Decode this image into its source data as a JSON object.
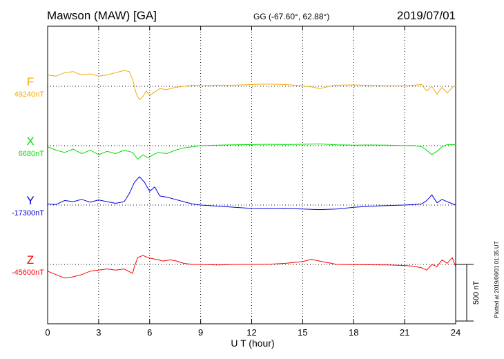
{
  "header": {
    "station": "Mawson (MAW)  [GA]",
    "coords": "GG (-67.60°,  62.88°)",
    "date": "2019/07/01"
  },
  "footer": {
    "plotted": "Plotted at 2019/08/01 01:35 UT"
  },
  "chart_data": {
    "type": "line",
    "xlabel": "U T (hour)",
    "xlim": [
      0,
      24
    ],
    "xticks": [
      0,
      3,
      6,
      9,
      12,
      15,
      18,
      21,
      24
    ],
    "scale_bar": {
      "label": "500 nT",
      "value_nT": 500
    },
    "grid": true,
    "series": [
      {
        "name": "F",
        "baseline_label": "49240nT",
        "baseline_nT": 49240,
        "color": "#f5a800",
        "x": [
          0,
          0.5,
          1,
          1.5,
          2,
          2.5,
          3,
          3.5,
          4,
          4.5,
          4.8,
          5,
          5.2,
          5.4,
          5.6,
          5.8,
          6,
          6.3,
          6.6,
          7,
          7.5,
          8,
          8.5,
          9,
          10,
          11,
          12,
          13,
          14,
          15,
          15.5,
          16,
          16.3,
          16.7,
          17,
          18,
          19,
          20,
          21,
          21.5,
          22,
          22.3,
          22.6,
          22.9,
          23.2,
          23.5,
          23.8,
          24
        ],
        "y": [
          49340,
          49330,
          49360,
          49370,
          49340,
          49350,
          49330,
          49340,
          49360,
          49380,
          49370,
          49300,
          49180,
          49120,
          49150,
          49200,
          49160,
          49190,
          49220,
          49210,
          49230,
          49240,
          49250,
          49245,
          49250,
          49250,
          49255,
          49260,
          49255,
          49245,
          49235,
          49220,
          49230,
          49245,
          49250,
          49252,
          49248,
          49245,
          49245,
          49250,
          49255,
          49200,
          49240,
          49170,
          49230,
          49180,
          49230,
          49250
        ]
      },
      {
        "name": "X",
        "baseline_label": "6680nT",
        "baseline_nT": 6680,
        "color": "#00dd00",
        "x": [
          0,
          0.5,
          1,
          1.5,
          2,
          2.5,
          3,
          3.5,
          4,
          4.5,
          5,
          5.3,
          5.6,
          5.9,
          6.2,
          6.5,
          7,
          7.5,
          8,
          8.5,
          9,
          10,
          11,
          12,
          13,
          14,
          15,
          16,
          17,
          18,
          19,
          20,
          21,
          21.5,
          22,
          22.3,
          22.6,
          22.9,
          23.2,
          23.5,
          24
        ],
        "y": [
          6670,
          6640,
          6620,
          6650,
          6610,
          6640,
          6600,
          6630,
          6610,
          6640,
          6620,
          6560,
          6600,
          6570,
          6600,
          6620,
          6610,
          6640,
          6660,
          6670,
          6680,
          6685,
          6688,
          6690,
          6692,
          6690,
          6692,
          6695,
          6688,
          6685,
          6686,
          6684,
          6680,
          6682,
          6670,
          6640,
          6600,
          6630,
          6670,
          6690,
          6690
        ]
      },
      {
        "name": "Y",
        "baseline_label": "-17300nT",
        "baseline_nT": -17300,
        "color": "#0000dd",
        "x": [
          0,
          0.5,
          1,
          1.5,
          2,
          2.5,
          3,
          3.5,
          4,
          4.5,
          4.8,
          5.1,
          5.4,
          5.7,
          6,
          6.3,
          6.6,
          7,
          7.5,
          8,
          8.5,
          9,
          10,
          11,
          12,
          13,
          14,
          15,
          16,
          17,
          18,
          19,
          20,
          21,
          21.5,
          22,
          22.3,
          22.6,
          22.9,
          23.2,
          23.5,
          24
        ],
        "y": [
          -17290,
          -17295,
          -17260,
          -17270,
          -17250,
          -17275,
          -17255,
          -17270,
          -17285,
          -17270,
          -17200,
          -17100,
          -17050,
          -17100,
          -17180,
          -17140,
          -17220,
          -17230,
          -17250,
          -17270,
          -17290,
          -17300,
          -17310,
          -17320,
          -17330,
          -17332,
          -17330,
          -17335,
          -17340,
          -17335,
          -17320,
          -17310,
          -17305,
          -17300,
          -17295,
          -17290,
          -17260,
          -17210,
          -17280,
          -17250,
          -17270,
          -17300
        ]
      },
      {
        "name": "Z",
        "baseline_label": "-45600nT",
        "baseline_nT": -45600,
        "color": "#ff0000",
        "x": [
          0,
          0.5,
          1,
          1.5,
          2,
          2.5,
          3,
          3.5,
          4,
          4.5,
          5,
          5.1,
          5.3,
          5.6,
          5.9,
          6.2,
          6.5,
          6.8,
          7.2,
          7.6,
          8,
          8.5,
          9,
          10,
          11,
          12,
          13,
          14,
          15,
          15.5,
          16,
          16.3,
          16.7,
          17,
          18,
          19,
          20,
          21,
          21.5,
          22,
          22.3,
          22.6,
          22.9,
          23.2,
          23.5,
          23.8,
          24
        ],
        "y": [
          -45660,
          -45690,
          -45720,
          -45710,
          -45690,
          -45660,
          -45650,
          -45640,
          -45650,
          -45640,
          -45680,
          -45620,
          -45540,
          -45520,
          -45540,
          -45550,
          -45560,
          -45570,
          -45560,
          -45570,
          -45590,
          -45600,
          -45600,
          -45605,
          -45600,
          -45600,
          -45598,
          -45590,
          -45575,
          -45555,
          -45570,
          -45580,
          -45590,
          -45600,
          -45602,
          -45603,
          -45605,
          -45610,
          -45615,
          -45630,
          -45650,
          -45600,
          -45620,
          -45560,
          -45590,
          -45540,
          -45620
        ]
      }
    ]
  }
}
